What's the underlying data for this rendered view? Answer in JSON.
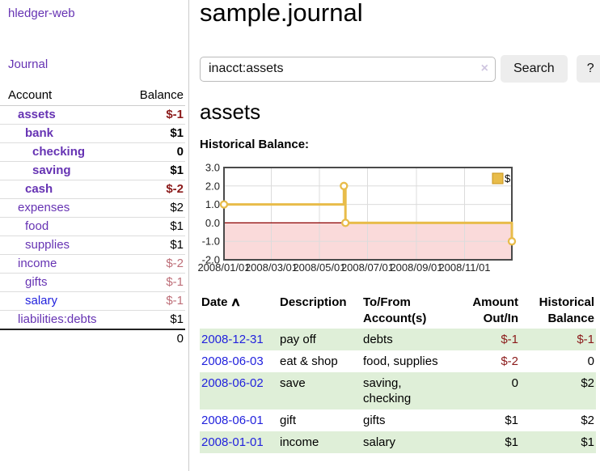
{
  "app": {
    "brand": "hledger-web",
    "journal_label": "Journal"
  },
  "sidebar": {
    "account_header": "Account",
    "balance_header": "Balance",
    "accounts": [
      {
        "name": "assets",
        "depth": 1,
        "balance": "$-1",
        "bold": true,
        "balance_style": "neg-strong",
        "link_style": "purple"
      },
      {
        "name": "bank",
        "depth": 2,
        "balance": "$1",
        "bold": true,
        "balance_style": "normal",
        "link_style": "purple"
      },
      {
        "name": "checking",
        "depth": 3,
        "balance": "0",
        "bold": true,
        "balance_style": "normal",
        "link_style": "purple"
      },
      {
        "name": "saving",
        "depth": 3,
        "balance": "$1",
        "bold": true,
        "balance_style": "normal",
        "link_style": "purple"
      },
      {
        "name": "cash",
        "depth": 2,
        "balance": "$-2",
        "bold": true,
        "balance_style": "neg-strong",
        "link_style": "purple"
      },
      {
        "name": "expenses",
        "depth": 1,
        "balance": "$2",
        "bold": false,
        "balance_style": "normal",
        "link_style": "purple"
      },
      {
        "name": "food",
        "depth": 2,
        "balance": "$1",
        "bold": false,
        "balance_style": "normal",
        "link_style": "purple"
      },
      {
        "name": "supplies",
        "depth": 2,
        "balance": "$1",
        "bold": false,
        "balance_style": "normal",
        "link_style": "purple"
      },
      {
        "name": "income",
        "depth": 1,
        "balance": "$-2",
        "bold": false,
        "balance_style": "neg-muted",
        "link_style": "purple"
      },
      {
        "name": "gifts",
        "depth": 2,
        "balance": "$-1",
        "bold": false,
        "balance_style": "neg-muted",
        "link_style": "purple"
      },
      {
        "name": "salary",
        "depth": 2,
        "balance": "$-1",
        "bold": false,
        "balance_style": "neg-muted",
        "link_style": "blue"
      },
      {
        "name": "liabilities:debts",
        "depth": 1,
        "balance": "$1",
        "bold": false,
        "balance_style": "normal",
        "link_style": "purple"
      }
    ],
    "total": "0"
  },
  "header": {
    "title": "sample.journal"
  },
  "search": {
    "value": "inacct:assets",
    "clear_icon": "×",
    "button_label": "Search",
    "help_label": "?"
  },
  "account_view": {
    "title": "assets",
    "chart_label": "Historical Balance:"
  },
  "chart_data": {
    "type": "line",
    "step": true,
    "title": "Historical Balance:",
    "series": [
      {
        "name": "$",
        "points": [
          {
            "date": "2008-01-01",
            "value": 1
          },
          {
            "date": "2008-06-01",
            "value": 2
          },
          {
            "date": "2008-06-03",
            "value": 0
          },
          {
            "date": "2008-12-31",
            "value": -1
          }
        ]
      }
    ],
    "x_domain": [
      "2008-01-01",
      "2008-12-31"
    ],
    "x_ticks": [
      {
        "date": "2008-01-01",
        "label": "2008/01/01"
      },
      {
        "date": "2008-03-01",
        "label": "2008/03/01"
      },
      {
        "date": "2008-05-01",
        "label": "2008/05/01"
      },
      {
        "date": "2008-07-01",
        "label": "2008/07/01"
      },
      {
        "date": "2008-09-01",
        "label": "2008/09/01"
      },
      {
        "date": "2008-11-01",
        "label": "2008/11/01"
      }
    ],
    "y_ticks": [
      {
        "value": 3,
        "label": "3.0"
      },
      {
        "value": 2,
        "label": "2.0"
      },
      {
        "value": 1,
        "label": "1.0"
      },
      {
        "value": 0,
        "label": "0.0"
      },
      {
        "value": -1,
        "label": "-1.0"
      },
      {
        "value": -2,
        "label": "-2.0"
      }
    ],
    "ylim": [
      -2,
      3
    ],
    "grid": true,
    "legend": {
      "label": "$",
      "position": "top-right"
    },
    "colors": {
      "line": "#e8bc4a",
      "marker_fill": "#ffffff",
      "negative_region": "#fadada",
      "zero_line": "#8b0000",
      "grid": "#dcdcdc",
      "border": "#4a4a4a",
      "tick_text": "#222222"
    }
  },
  "table": {
    "headers": {
      "date": "Date",
      "sort_icon": "∧",
      "description": "Description",
      "tofrom_line1": "To/From",
      "tofrom_line2": "Account(s)",
      "amount_line1": "Amount",
      "amount_line2": "Out/In",
      "balance_line1": "Historical",
      "balance_line2": "Balance"
    },
    "rows": [
      {
        "date": "2008-12-31",
        "description": "pay off",
        "accounts": "debts",
        "amount": "$-1",
        "amount_negative": true,
        "balance": "$-1",
        "balance_negative": true
      },
      {
        "date": "2008-06-03",
        "description": "eat & shop",
        "accounts": "food, supplies",
        "amount": "$-2",
        "amount_negative": true,
        "balance": "0",
        "balance_negative": false
      },
      {
        "date": "2008-06-02",
        "description": "save",
        "accounts": "saving, checking",
        "amount": "0",
        "amount_negative": false,
        "balance": "$2",
        "balance_negative": false
      },
      {
        "date": "2008-06-01",
        "description": "gift",
        "accounts": "gifts",
        "amount": "$1",
        "amount_negative": false,
        "balance": "$2",
        "balance_negative": false
      },
      {
        "date": "2008-01-01",
        "description": "income",
        "accounts": "salary",
        "amount": "$1",
        "amount_negative": false,
        "balance": "$1",
        "balance_negative": false
      }
    ]
  }
}
